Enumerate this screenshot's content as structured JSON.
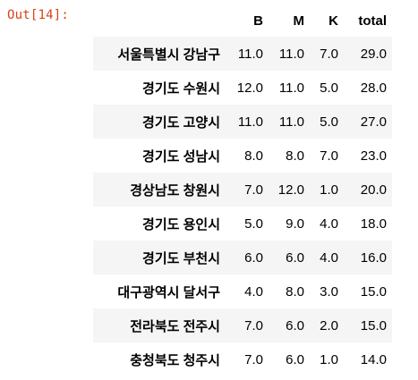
{
  "prompt": {
    "label": "Out[14]:"
  },
  "table": {
    "index_header": "",
    "columns": [
      "B",
      "M",
      "K",
      "total"
    ],
    "rows": [
      {
        "index": "서울특별시 강남구",
        "values": [
          "11.0",
          "11.0",
          "7.0",
          "29.0"
        ]
      },
      {
        "index": "경기도 수원시",
        "values": [
          "12.0",
          "11.0",
          "5.0",
          "28.0"
        ]
      },
      {
        "index": "경기도 고양시",
        "values": [
          "11.0",
          "11.0",
          "5.0",
          "27.0"
        ]
      },
      {
        "index": "경기도 성남시",
        "values": [
          "8.0",
          "8.0",
          "7.0",
          "23.0"
        ]
      },
      {
        "index": "경상남도 창원시",
        "values": [
          "7.0",
          "12.0",
          "1.0",
          "20.0"
        ]
      },
      {
        "index": "경기도 용인시",
        "values": [
          "5.0",
          "9.0",
          "4.0",
          "18.0"
        ]
      },
      {
        "index": "경기도 부천시",
        "values": [
          "6.0",
          "6.0",
          "4.0",
          "16.0"
        ]
      },
      {
        "index": "대구광역시 달서구",
        "values": [
          "4.0",
          "8.0",
          "3.0",
          "15.0"
        ]
      },
      {
        "index": "전라북도 전주시",
        "values": [
          "7.0",
          "6.0",
          "2.0",
          "15.0"
        ]
      },
      {
        "index": "충청북도 청주시",
        "values": [
          "7.0",
          "6.0",
          "1.0",
          "14.0"
        ]
      }
    ]
  },
  "colors": {
    "prompt": "#d84315",
    "stripe": "#f5f5f5",
    "text": "#000000"
  }
}
